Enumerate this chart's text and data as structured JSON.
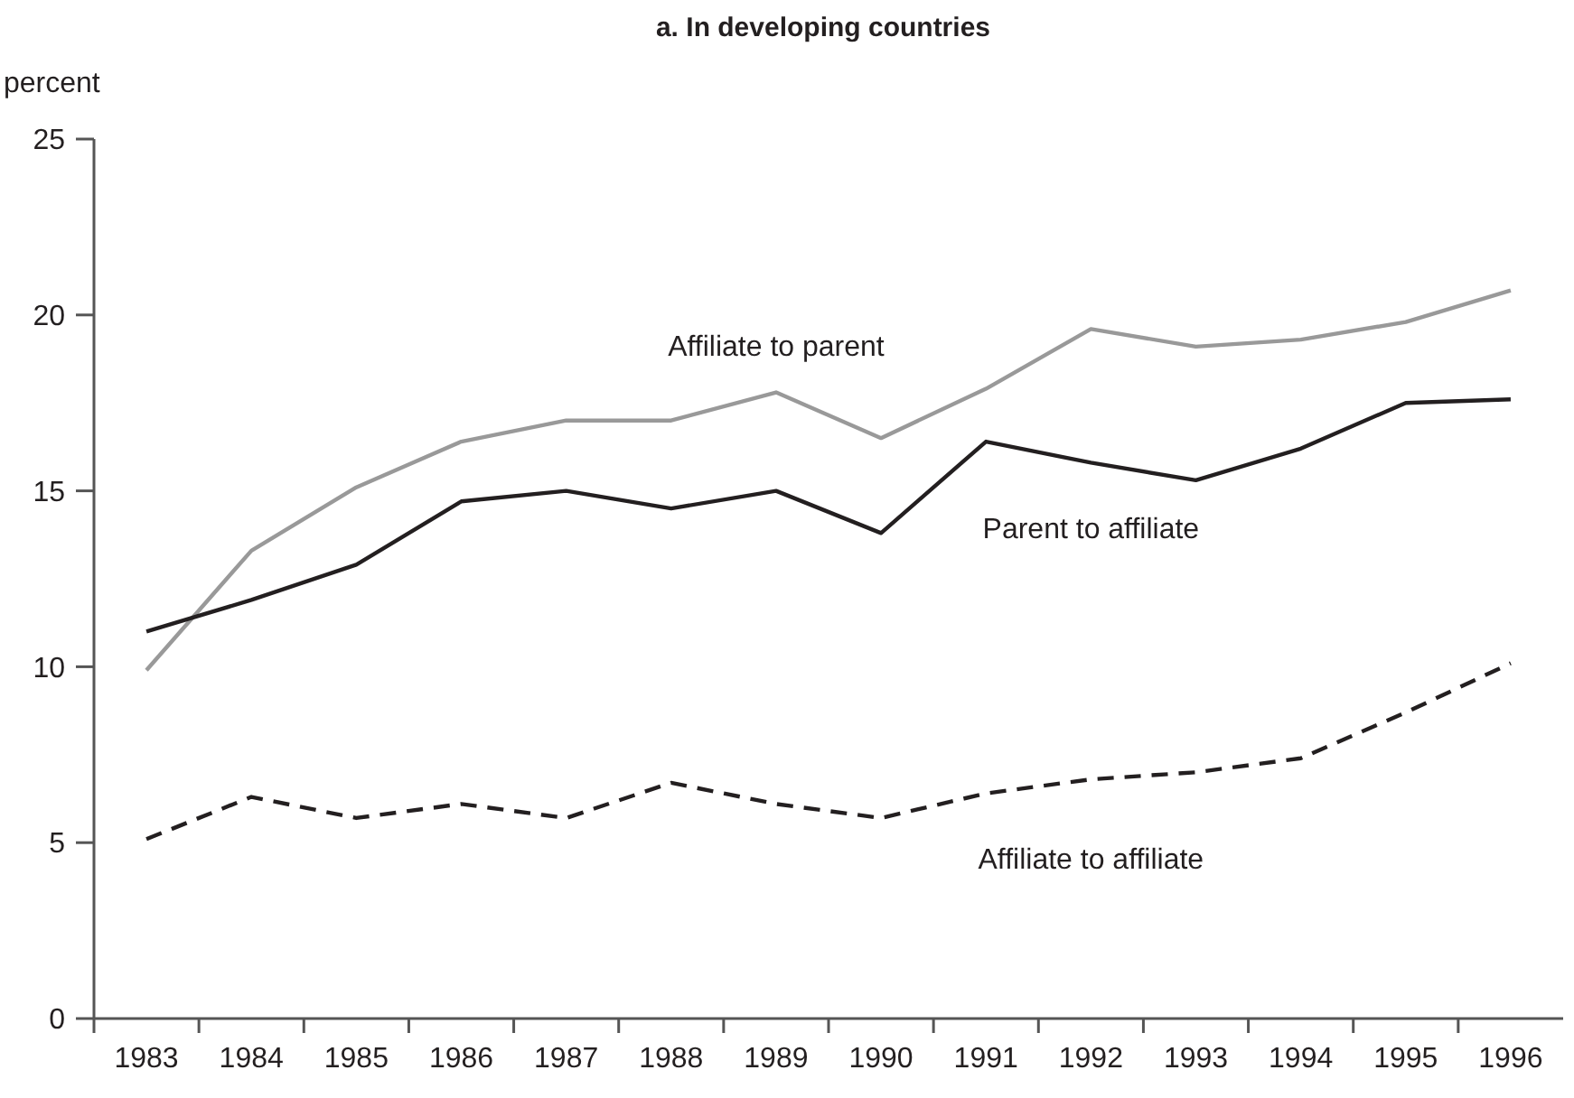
{
  "chart_data": {
    "type": "line",
    "title": "a. In developing countries",
    "ylabel": "percent",
    "categories": [
      "1983",
      "1984",
      "1985",
      "1986",
      "1987",
      "1988",
      "1989",
      "1990",
      "1991",
      "1992",
      "1993",
      "1994",
      "1995",
      "1996"
    ],
    "series": [
      {
        "name": "Affiliate to parent",
        "color": "#999999",
        "line_style": "solid",
        "values": [
          9.9,
          13.3,
          15.1,
          16.4,
          17.0,
          17.0,
          17.8,
          16.5,
          17.9,
          19.6,
          19.1,
          19.3,
          19.8,
          20.7
        ]
      },
      {
        "name": "Parent to affiliate",
        "color": "#231f20",
        "line_style": "solid",
        "values": [
          11.0,
          11.9,
          12.9,
          14.7,
          15.0,
          14.5,
          15.0,
          13.8,
          16.4,
          15.8,
          15.3,
          16.2,
          17.5,
          17.6
        ]
      },
      {
        "name": "Affiliate to affiliate",
        "color": "#231f20",
        "line_style": "dashed",
        "values": [
          5.1,
          6.3,
          5.7,
          6.1,
          5.7,
          6.7,
          6.1,
          5.7,
          6.4,
          6.8,
          7.0,
          7.4,
          8.7,
          10.1
        ]
      }
    ],
    "ylim": [
      0,
      25
    ],
    "yticks": [
      0,
      5,
      10,
      15,
      20,
      25
    ],
    "grid": false
  }
}
